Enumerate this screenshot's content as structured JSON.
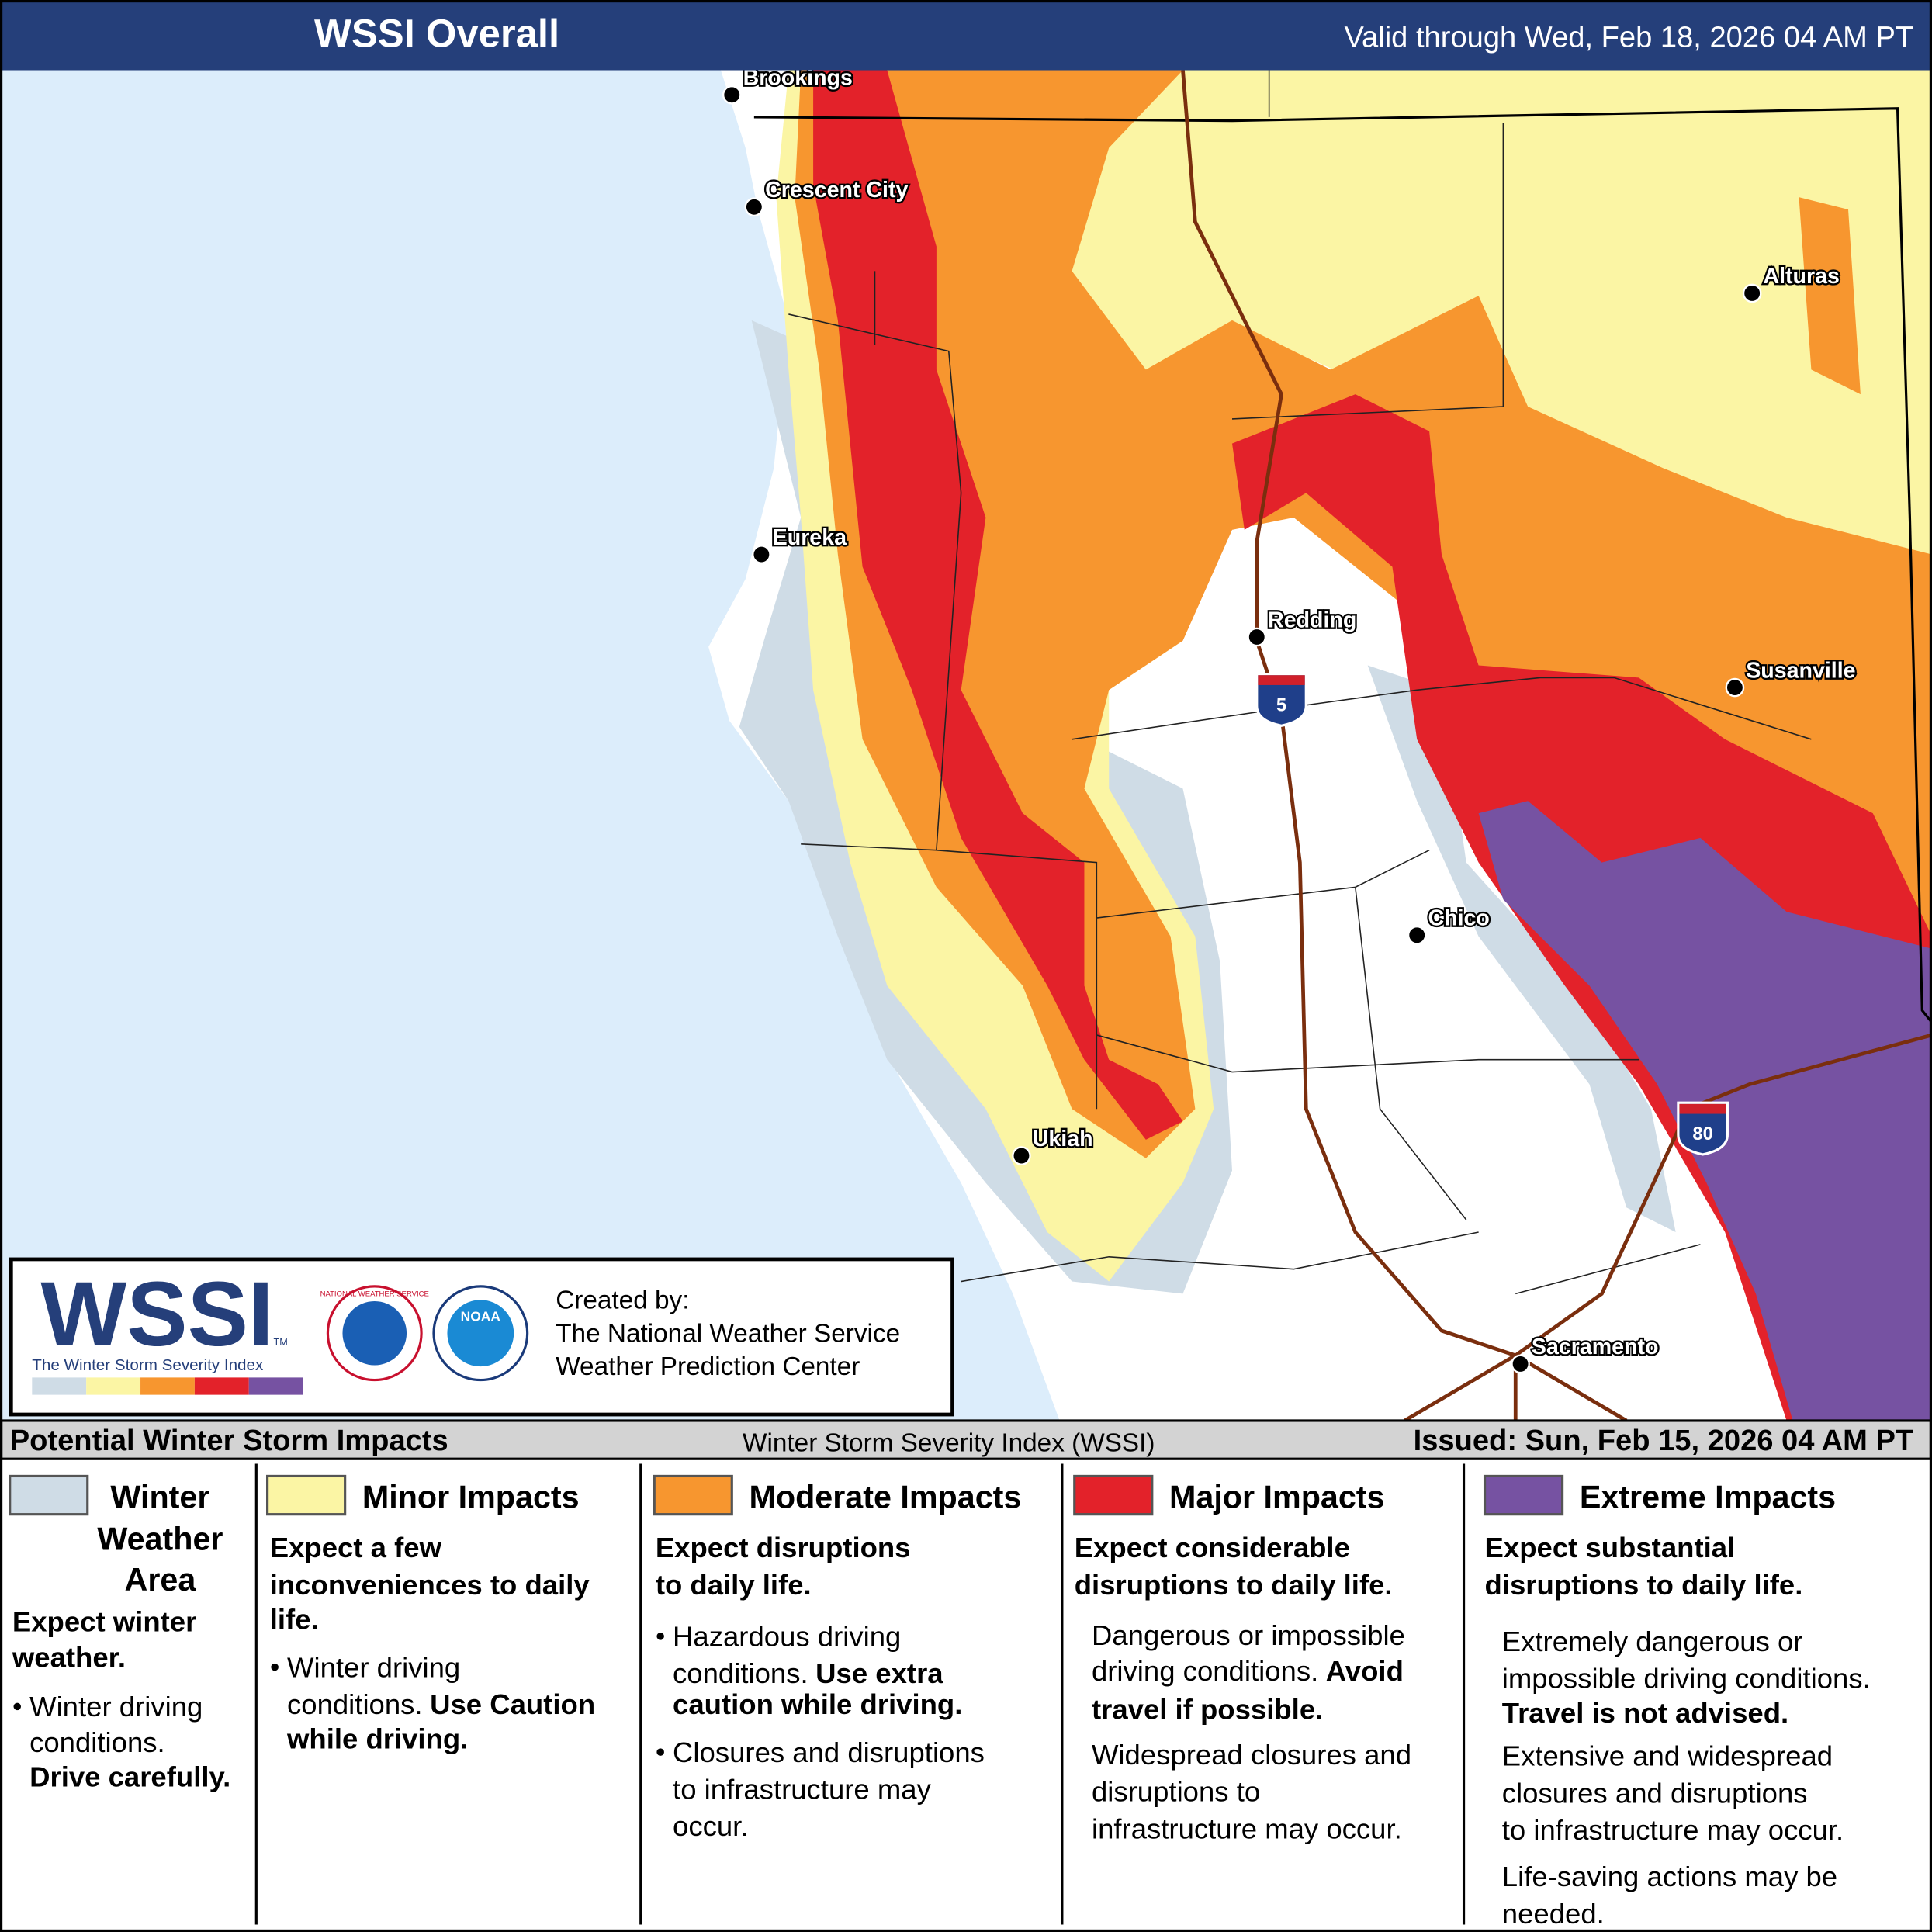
{
  "header": {
    "title": "WSSI Overall",
    "valid": "Valid through Wed, Feb 18, 2026 04 AM PT"
  },
  "cities": [
    "Brookings",
    "Crescent City",
    "Eureka",
    "Redding",
    "Alturas",
    "Susanville",
    "Chico",
    "Ukiah",
    "Sacramento"
  ],
  "highways": [
    "5",
    "80"
  ],
  "logo": {
    "wssi": "WSSI",
    "tm": "TM",
    "subtitle": "The Winter Storm Severity Index",
    "noaa": "NOAA",
    "nws": "NATIONAL WEATHER SERVICE",
    "created_by": [
      "Created by:",
      "The National Weather Service",
      "Weather Prediction Center"
    ]
  },
  "legend": {
    "title": "Potential Winter Storm Impacts",
    "center": "Winter Storm Severity Index (WSSI)",
    "issued": "Issued: Sun, Feb 15, 2026 04 AM PT",
    "categories": [
      {
        "name": [
          "Winter",
          "Weather",
          "Area"
        ],
        "color": "#cfdce6",
        "headline": [
          "Expect winter",
          "weather."
        ],
        "lines": [
          {
            "text": "Winter driving",
            "bullet": true
          },
          {
            "text": "conditions."
          },
          {
            "bold": "Drive carefully."
          }
        ]
      },
      {
        "name": [
          "Minor Impacts"
        ],
        "color": "#fbf5a4",
        "headline": [
          "Expect a few",
          "inconveniences to daily",
          "life."
        ],
        "lines": [
          {
            "text": "Winter driving",
            "bullet": true
          },
          {
            "text": "conditions.",
            "bold": "Use Caution"
          },
          {
            "bold": "while driving."
          }
        ]
      },
      {
        "name": [
          "Moderate Impacts"
        ],
        "color": "#f7962f",
        "headline": [
          "Expect disruptions",
          "to daily life."
        ],
        "lines": [
          {
            "text": "Hazardous driving",
            "bullet": true
          },
          {
            "text": "conditions.",
            "bold": "Use extra"
          },
          {
            "bold": "caution while driving."
          },
          {
            "text": "Closures and disruptions",
            "bullet": true
          },
          {
            "text": "to infrastructure may"
          },
          {
            "text": "occur."
          }
        ]
      },
      {
        "name": [
          "Major Impacts"
        ],
        "color": "#e3222a",
        "headline": [
          "Expect considerable",
          "disruptions to daily life."
        ],
        "lines": [
          {
            "text": "Dangerous or impossible"
          },
          {
            "text": "driving conditions.",
            "bold": "Avoid"
          },
          {
            "bold": "travel if possible."
          },
          {
            "text": "Widespread closures and"
          },
          {
            "text": "disruptions to"
          },
          {
            "text": "infrastructure may occur."
          }
        ]
      },
      {
        "name": [
          "Extreme Impacts"
        ],
        "color": "#7652a2",
        "headline": [
          "Expect substantial",
          "disruptions to daily life."
        ],
        "lines": [
          {
            "text": "Extremely dangerous or"
          },
          {
            "text": "impossible driving conditions."
          },
          {
            "bold": "Travel is not advised."
          },
          {
            "text": "Extensive and widespread"
          },
          {
            "text": "closures and disruptions"
          },
          {
            "text": "to infrastructure may occur."
          },
          {
            "text": "Life-saving actions may be"
          },
          {
            "text": "needed."
          }
        ]
      }
    ]
  }
}
